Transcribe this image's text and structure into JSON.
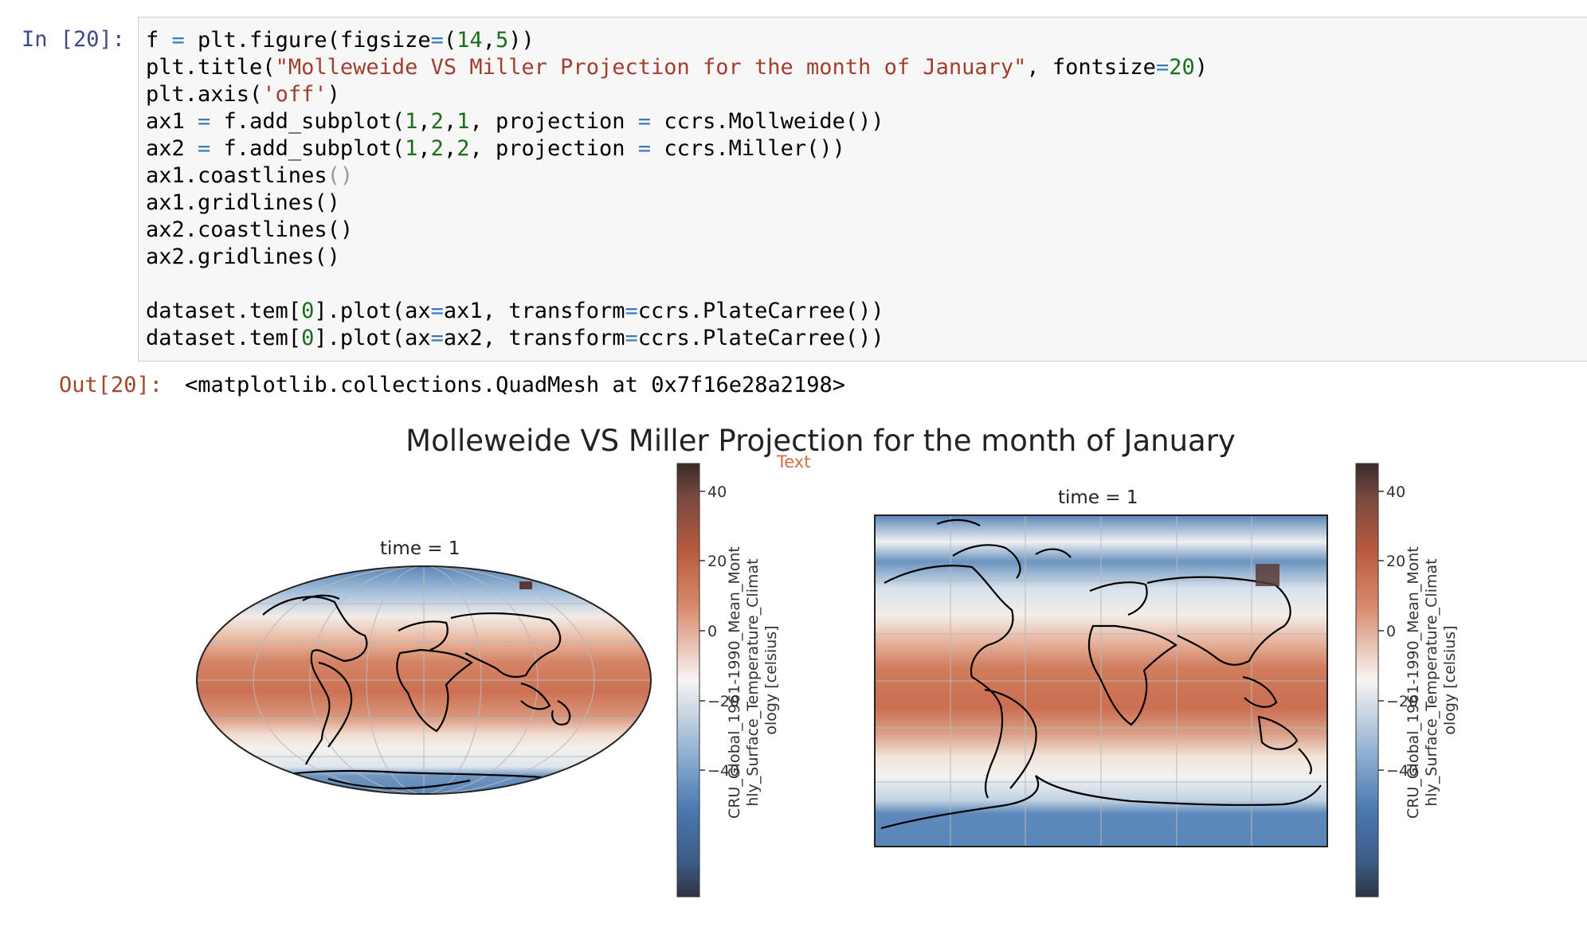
{
  "input_prompt": "In [20]:",
  "output_prompt": "Out[20]:",
  "code_lines": [
    [
      [
        "f ",
        ""
      ],
      [
        "=",
        "op"
      ],
      [
        " plt.figure(figsize",
        ""
      ],
      [
        "=",
        "op"
      ],
      [
        "(",
        ""
      ],
      [
        "14",
        "num"
      ],
      [
        ",",
        ""
      ],
      [
        "5",
        "num"
      ],
      [
        "))",
        ""
      ]
    ],
    [
      [
        "plt.title(",
        ""
      ],
      [
        "\"Molleweide VS Miller Projection for the month of January\"",
        "str"
      ],
      [
        ", fontsize",
        ""
      ],
      [
        "=",
        "op"
      ],
      [
        "20",
        "num"
      ],
      [
        ")",
        ""
      ]
    ],
    [
      [
        "plt.axis(",
        ""
      ],
      [
        "'off'",
        "str"
      ],
      [
        ")",
        ""
      ]
    ],
    [
      [
        "ax1 ",
        ""
      ],
      [
        "=",
        "op"
      ],
      [
        " f.add_subplot(",
        ""
      ],
      [
        "1",
        "num"
      ],
      [
        ",",
        ""
      ],
      [
        "2",
        "num"
      ],
      [
        ",",
        ""
      ],
      [
        "1",
        "num"
      ],
      [
        ", projection ",
        ""
      ],
      [
        "=",
        "op"
      ],
      [
        " ccrs.Mollweide())",
        ""
      ]
    ],
    [
      [
        "ax2 ",
        ""
      ],
      [
        "=",
        "op"
      ],
      [
        " f.add_subplot(",
        ""
      ],
      [
        "1",
        "num"
      ],
      [
        ",",
        ""
      ],
      [
        "2",
        "num"
      ],
      [
        ",",
        ""
      ],
      [
        "2",
        "num"
      ],
      [
        ", projection ",
        ""
      ],
      [
        "=",
        "op"
      ],
      [
        " ccrs.Miller())",
        ""
      ]
    ],
    [
      [
        "ax1.coastlines",
        ""
      ],
      [
        "()",
        "hl"
      ]
    ],
    [
      [
        "ax1.gridlines()",
        ""
      ]
    ],
    [
      [
        "ax2.coastlines()",
        ""
      ]
    ],
    [
      [
        "ax2.gridlines()",
        ""
      ]
    ],
    [
      [
        "",
        ""
      ]
    ],
    [
      [
        "dataset.tem[",
        ""
      ],
      [
        "0",
        "num"
      ],
      [
        "].plot(ax",
        ""
      ],
      [
        "=",
        "op"
      ],
      [
        "ax1, transform",
        ""
      ],
      [
        "=",
        "op"
      ],
      [
        "ccrs.PlateCarree())",
        ""
      ]
    ],
    [
      [
        "dataset.tem[",
        ""
      ],
      [
        "0",
        "num"
      ],
      [
        "].plot(ax",
        ""
      ],
      [
        "=",
        "op"
      ],
      [
        "ax2, transform",
        ""
      ],
      [
        "=",
        "op"
      ],
      [
        "ccrs.PlateCarree())",
        ""
      ]
    ]
  ],
  "output_text": "<matplotlib.collections.QuadMesh at 0x7f16e28a2198>",
  "figure": {
    "title": "Molleweide VS Miller Projection for the month of January",
    "text_annotation": "Text",
    "left_subtitle": "time = 1",
    "right_subtitle": "time = 1",
    "colorbar_label_lines": [
      "CRU_Global_1961-1990_Mean_Mont",
      "hly_Surface_Temperature_Climat",
      "ology [celsius]"
    ],
    "colorbar_ticks": [
      "40",
      "20",
      "0",
      "−20",
      "−40"
    ],
    "colormap": {
      "low": "#4a78b0",
      "mid": "#f7f4f2",
      "high": "#c2603e",
      "top": "#3a2b2b",
      "bottom": "#2e3444"
    }
  }
}
